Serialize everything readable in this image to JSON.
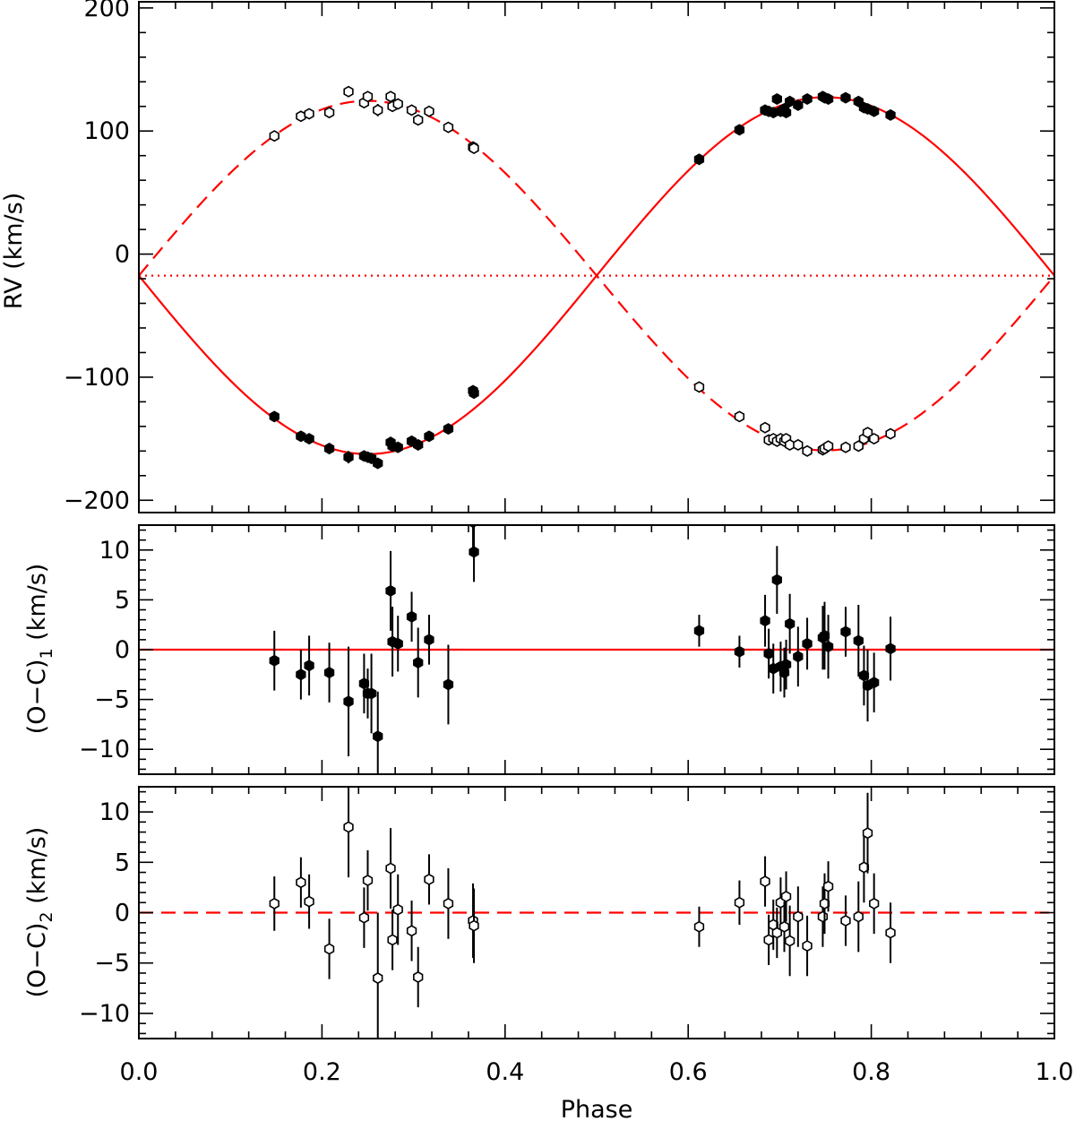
{
  "chart_data": {
    "type": "scatter",
    "figure_title": "",
    "x_label": "Phase",
    "x_range": [
      0.0,
      1.0
    ],
    "x_tick_labels": [
      "0.0",
      "0.2",
      "0.4",
      "0.6",
      "0.8",
      "1.0"
    ],
    "colors": {
      "model": "#ff0000",
      "data": "#000000",
      "frame": "#000000"
    },
    "model": {
      "gamma": -17.5,
      "K1": 145,
      "K2": 142
    },
    "panels": [
      {
        "id": "rv",
        "ylabel": "RV (km/s)",
        "ylim": [
          -210,
          205
        ],
        "y_ticks": [
          200,
          100,
          0,
          -100,
          -200
        ],
        "y_tick_labels": [
          "200",
          "100",
          "0",
          "−100",
          "−200"
        ],
        "reference_lines": [
          {
            "name": "primary-orbit",
            "style": "solid",
            "curve": "primary"
          },
          {
            "name": "secondary-orbit",
            "style": "dashed",
            "curve": "secondary"
          },
          {
            "name": "systemic-velocity",
            "style": "dotted",
            "value": -17.5
          }
        ],
        "series": [
          {
            "name": "Primary",
            "marker": "filled",
            "x": [
              0.148,
              0.177,
              0.186,
              0.208,
              0.229,
              0.246,
              0.25,
              0.254,
              0.261,
              0.275,
              0.277,
              0.283,
              0.298,
              0.305,
              0.317,
              0.338,
              0.365,
              0.366,
              0.612,
              0.656,
              0.684,
              0.688,
              0.693,
              0.697,
              0.701,
              0.705,
              0.707,
              0.711,
              0.72,
              0.73,
              0.747,
              0.749,
              0.753,
              0.772,
              0.786,
              0.792,
              0.796,
              0.803,
              0.821
            ],
            "y": [
              -132,
              -148,
              -150,
              -158,
              -165,
              -164,
              -165,
              -166,
              -170,
              -153,
              -156,
              -157,
              -152,
              -155,
              -148,
              -142,
              -111,
              -113,
              77,
              101,
              117,
              116,
              115,
              126,
              116,
              118,
              115,
              124,
              121,
              126,
              128,
              127,
              126,
              127,
              124,
              119,
              118,
              116,
              113
            ],
            "err": [
              3,
              3,
              3,
              3,
              5,
              3,
              3,
              3,
              4,
              4,
              3,
              3,
              3,
              3,
              3,
              4,
              3,
              3,
              3,
              2,
              3,
              3,
              3,
              3,
              3,
              3,
              3,
              3,
              3,
              3,
              3,
              3,
              3,
              3,
              3,
              3,
              3,
              3,
              3
            ]
          },
          {
            "name": "Secondary",
            "marker": "open",
            "x": [
              0.148,
              0.177,
              0.186,
              0.208,
              0.229,
              0.246,
              0.25,
              0.261,
              0.275,
              0.277,
              0.283,
              0.298,
              0.305,
              0.317,
              0.338,
              0.365,
              0.366,
              0.612,
              0.656,
              0.684,
              0.688,
              0.693,
              0.697,
              0.701,
              0.705,
              0.707,
              0.711,
              0.72,
              0.73,
              0.747,
              0.749,
              0.753,
              0.772,
              0.786,
              0.792,
              0.796,
              0.803,
              0.821
            ],
            "y": [
              96,
              112,
              114,
              115,
              132,
              123,
              128,
              117,
              128,
              120,
              122,
              117,
              109,
              116,
              103,
              87,
              86,
              -108,
              -132,
              -141,
              -151,
              -150,
              -152,
              -150,
              -152,
              -150,
              -155,
              -155,
              -160,
              -159,
              -158,
              -156,
              -157,
              -156,
              -150,
              -145,
              -150,
              -146
            ],
            "err": [
              2,
              2,
              2,
              2,
              4,
              3,
              3,
              5,
              3,
              3,
              3,
              3,
              3,
              3,
              3,
              3,
              3,
              2,
              2,
              2,
              2,
              2,
              2,
              2,
              2,
              2,
              2,
              2,
              2,
              2,
              2,
              2,
              2,
              2,
              3,
              3,
              2,
              3
            ]
          }
        ]
      },
      {
        "id": "oc1",
        "ylabel": "(O−C)",
        "ylabel_subscript": "1",
        "ylabel_suffix": " (km/s)",
        "ylim": [
          -12.5,
          12.5
        ],
        "y_ticks": [
          10,
          5,
          0,
          -5,
          -10
        ],
        "y_tick_labels": [
          "10",
          "5",
          "0",
          "−5",
          "−10"
        ],
        "reference_lines": [
          {
            "name": "zero-line",
            "style": "solid",
            "value": 0
          }
        ],
        "series": [
          {
            "name": "Primary residuals",
            "marker": "filled",
            "x": [
              0.148,
              0.177,
              0.186,
              0.208,
              0.229,
              0.246,
              0.25,
              0.254,
              0.261,
              0.275,
              0.277,
              0.283,
              0.298,
              0.305,
              0.317,
              0.338,
              0.365,
              0.366,
              0.612,
              0.656,
              0.684,
              0.688,
              0.693,
              0.697,
              0.701,
              0.705,
              0.707,
              0.711,
              0.72,
              0.73,
              0.747,
              0.749,
              0.753,
              0.772,
              0.786,
              0.792,
              0.796,
              0.803,
              0.821
            ],
            "y": [
              -1.1,
              -2.5,
              -1.6,
              -2.3,
              -5.2,
              -3.4,
              -4.4,
              -4.4,
              -8.7,
              5.9,
              0.8,
              0.6,
              3.3,
              -1.3,
              1.0,
              -3.5,
              12.8,
              9.8,
              1.9,
              -0.2,
              2.9,
              -0.4,
              -1.9,
              7.0,
              -1.7,
              -2.3,
              -1.5,
              2.6,
              -0.7,
              0.6,
              1.2,
              1.4,
              0.3,
              1.8,
              0.9,
              -2.6,
              -3.6,
              -3.3,
              0.1
            ],
            "err": [
              3,
              2.5,
              3,
              3,
              5.5,
              3,
              2.5,
              4,
              4.5,
              4,
              3.5,
              2.8,
              2.5,
              3.5,
              2.5,
              4,
              3,
              3,
              1.6,
              1.6,
              2.6,
              2.5,
              2.5,
              3.4,
              2.5,
              2.5,
              2.5,
              3,
              3,
              2.6,
              3.2,
              3.4,
              3.2,
              2.5,
              3.6,
              3,
              3.6,
              3,
              3.2
            ]
          }
        ]
      },
      {
        "id": "oc2",
        "ylabel": "(O−C)",
        "ylabel_subscript": "2",
        "ylabel_suffix": " (km/s)",
        "ylim": [
          -12.5,
          12.5
        ],
        "y_ticks": [
          10,
          5,
          0,
          -5,
          -10
        ],
        "y_tick_labels": [
          "10",
          "5",
          "0",
          "−5",
          "−10"
        ],
        "reference_lines": [
          {
            "name": "zero-line",
            "style": "dashed",
            "value": 0
          }
        ],
        "series": [
          {
            "name": "Secondary residuals",
            "marker": "open",
            "x": [
              0.148,
              0.177,
              0.186,
              0.208,
              0.229,
              0.246,
              0.25,
              0.261,
              0.275,
              0.277,
              0.283,
              0.298,
              0.305,
              0.317,
              0.338,
              0.365,
              0.366,
              0.612,
              0.656,
              0.684,
              0.688,
              0.693,
              0.697,
              0.701,
              0.705,
              0.707,
              0.711,
              0.72,
              0.73,
              0.747,
              0.749,
              0.753,
              0.772,
              0.786,
              0.792,
              0.796,
              0.803,
              0.821
            ],
            "y": [
              0.9,
              3.0,
              1.1,
              -3.6,
              8.5,
              -0.5,
              3.2,
              -6.5,
              4.4,
              -2.7,
              0.3,
              -1.8,
              -6.4,
              3.3,
              0.9,
              -0.8,
              -1.3,
              -1.4,
              1.0,
              3.1,
              -2.7,
              -1.2,
              -2.0,
              1.0,
              -1.4,
              1.6,
              -2.8,
              -0.4,
              -3.3,
              -0.4,
              0.9,
              2.6,
              -0.8,
              -0.4,
              4.5,
              7.9,
              0.9,
              -2.0
            ],
            "err": [
              2.7,
              2.5,
              2.7,
              3,
              5,
              3,
              3,
              6.5,
              4,
              3,
              3.5,
              3,
              3,
              2.5,
              3.5,
              3.7,
              3.7,
              2,
              2.2,
              2.5,
              2.5,
              2.5,
              2.5,
              2.5,
              2.5,
              2.5,
              3.5,
              3,
              3,
              3,
              3,
              2.5,
              2.5,
              3.5,
              3.5,
              4,
              3,
              3
            ]
          }
        ]
      }
    ]
  }
}
